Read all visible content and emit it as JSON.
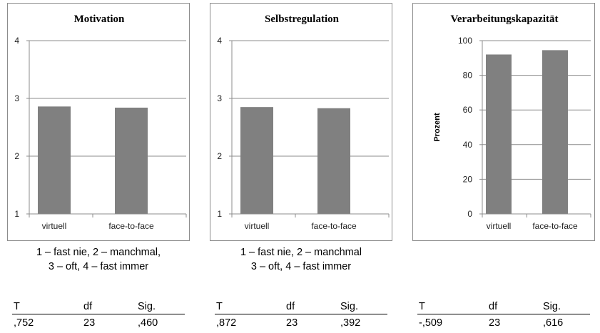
{
  "panels": [
    {
      "chart_data": {
        "type": "bar",
        "title": "Motivation",
        "ylabel": "",
        "categories": [
          "virtuell",
          "face-to-face"
        ],
        "values": [
          2.86,
          2.84
        ],
        "ylim": [
          1,
          4
        ],
        "yticks": [
          1,
          2,
          3,
          4
        ],
        "grid": true,
        "bar_color": "#808080"
      },
      "caption": [
        "1 – fast nie, 2 – manchmal,",
        "3 – oft, 4 – fast immer"
      ],
      "stats": {
        "headers": [
          "T",
          "df",
          "Sig."
        ],
        "values": [
          ",752",
          "23",
          ",460"
        ]
      }
    },
    {
      "chart_data": {
        "type": "bar",
        "title": "Selbstregulation",
        "ylabel": "",
        "categories": [
          "virtuell",
          "face-to-face"
        ],
        "values": [
          2.85,
          2.83
        ],
        "ylim": [
          1,
          4
        ],
        "yticks": [
          1,
          2,
          3,
          4
        ],
        "grid": true,
        "bar_color": "#808080"
      },
      "caption": [
        "1 – fast nie, 2 – manchmal",
        "3 – oft, 4 – fast immer"
      ],
      "stats": {
        "headers": [
          "T",
          "df",
          "Sig."
        ],
        "values": [
          ",872",
          "23",
          ",392"
        ]
      }
    },
    {
      "chart_data": {
        "type": "bar",
        "title": "Verarbeitungskapazität",
        "ylabel": "Prozent",
        "categories": [
          "virtuell",
          "face-to-face"
        ],
        "values": [
          92,
          94.5
        ],
        "ylim": [
          0,
          100
        ],
        "yticks": [
          0,
          20,
          40,
          60,
          80,
          100
        ],
        "grid": true,
        "bar_color": "#808080"
      },
      "caption": [],
      "stats": {
        "headers": [
          "T",
          "df",
          "Sig."
        ],
        "values": [
          "-,509",
          "23",
          ",616"
        ]
      }
    }
  ]
}
